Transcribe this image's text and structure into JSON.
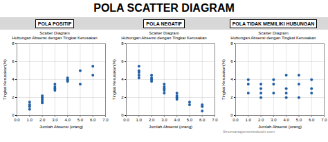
{
  "title": "POLA SCATTER DIAGRAM",
  "annotations": [
    "Ilmumanajemenindustri.com"
  ],
  "chart_data": [
    {
      "type": "scatter",
      "subtitle": "POLA POSITIF",
      "title": "Scatter Diagram\nHubungan Absensi dengan Tingkat Kerusakan",
      "xlabel": "Jumlah Absensi (orang)",
      "ylabel": "Tingkat Kerusakan(%)",
      "color": "#1F5FA6",
      "x": [
        1,
        1,
        1,
        1,
        2,
        2,
        2,
        2,
        2,
        3,
        3,
        3,
        3,
        4,
        4,
        4,
        4,
        5,
        5,
        6,
        6
      ],
      "values": [
        1.0,
        1.2,
        1.5,
        0.7,
        1.8,
        2.0,
        2.2,
        1.6,
        1.4,
        3.0,
        2.8,
        3.2,
        3.5,
        4.0,
        3.8,
        4.2,
        3.9,
        5.0,
        3.5,
        5.5,
        4.5
      ],
      "xlim": [
        0,
        7
      ],
      "ylim": [
        0,
        8
      ],
      "xticks": [
        0,
        1,
        2,
        3,
        4,
        5,
        6,
        7
      ],
      "yticks": [
        0,
        2,
        4,
        6,
        8
      ],
      "grid": true
    },
    {
      "type": "scatter",
      "subtitle": "POLA NEGATIF",
      "title": "Scatter Diagram\nHubungan Absensi dengan Tingkat Kerusakan",
      "xlabel": "Jumlah Absensi (orang)",
      "ylabel": "Tingkat Kerusakan(%)",
      "color": "#1F5FA6",
      "x": [
        1,
        1,
        1,
        1,
        1,
        2,
        2,
        2,
        2,
        3,
        3,
        3,
        3,
        3,
        4,
        4,
        4,
        4,
        5,
        5,
        6,
        6,
        6
      ],
      "values": [
        5.5,
        4.8,
        5.0,
        4.5,
        4.2,
        4.5,
        4.2,
        3.8,
        4.0,
        3.5,
        3.0,
        3.2,
        2.8,
        2.5,
        2.5,
        2.0,
        2.2,
        1.8,
        1.5,
        1.2,
        1.2,
        0.5,
        1.0
      ],
      "xlim": [
        0,
        7
      ],
      "ylim": [
        0,
        8
      ],
      "xticks": [
        0,
        1,
        2,
        3,
        4,
        5,
        6,
        7
      ],
      "yticks": [
        0,
        2,
        4,
        6,
        8
      ],
      "grid": true
    },
    {
      "type": "scatter",
      "subtitle": "POLA TIDAK MEMILIKI HUBUNGAN",
      "title": "Scatter Diagram\nHubungan Absensi dengan Tingkat Kerusakan",
      "xlabel": "Jumlah Absensi (orang)",
      "ylabel": "Tingkat Kerusakan(%)",
      "color": "#1F5FA6",
      "x": [
        1,
        1,
        1,
        2,
        2,
        2,
        2,
        3,
        3,
        3,
        4,
        4,
        4,
        4,
        5,
        5,
        5,
        6,
        6,
        6
      ],
      "values": [
        4.0,
        3.5,
        2.5,
        2.5,
        3.5,
        2.0,
        3.0,
        3.5,
        4.0,
        2.5,
        2.0,
        3.0,
        4.5,
        2.5,
        2.0,
        3.5,
        4.5,
        4.0,
        2.5,
        3.0
      ],
      "xlim": [
        0,
        7
      ],
      "ylim": [
        0,
        8
      ],
      "xticks": [
        0,
        1,
        2,
        3,
        4,
        5,
        6,
        7
      ],
      "yticks": [
        0,
        2,
        4,
        6,
        8
      ],
      "grid": true
    }
  ]
}
